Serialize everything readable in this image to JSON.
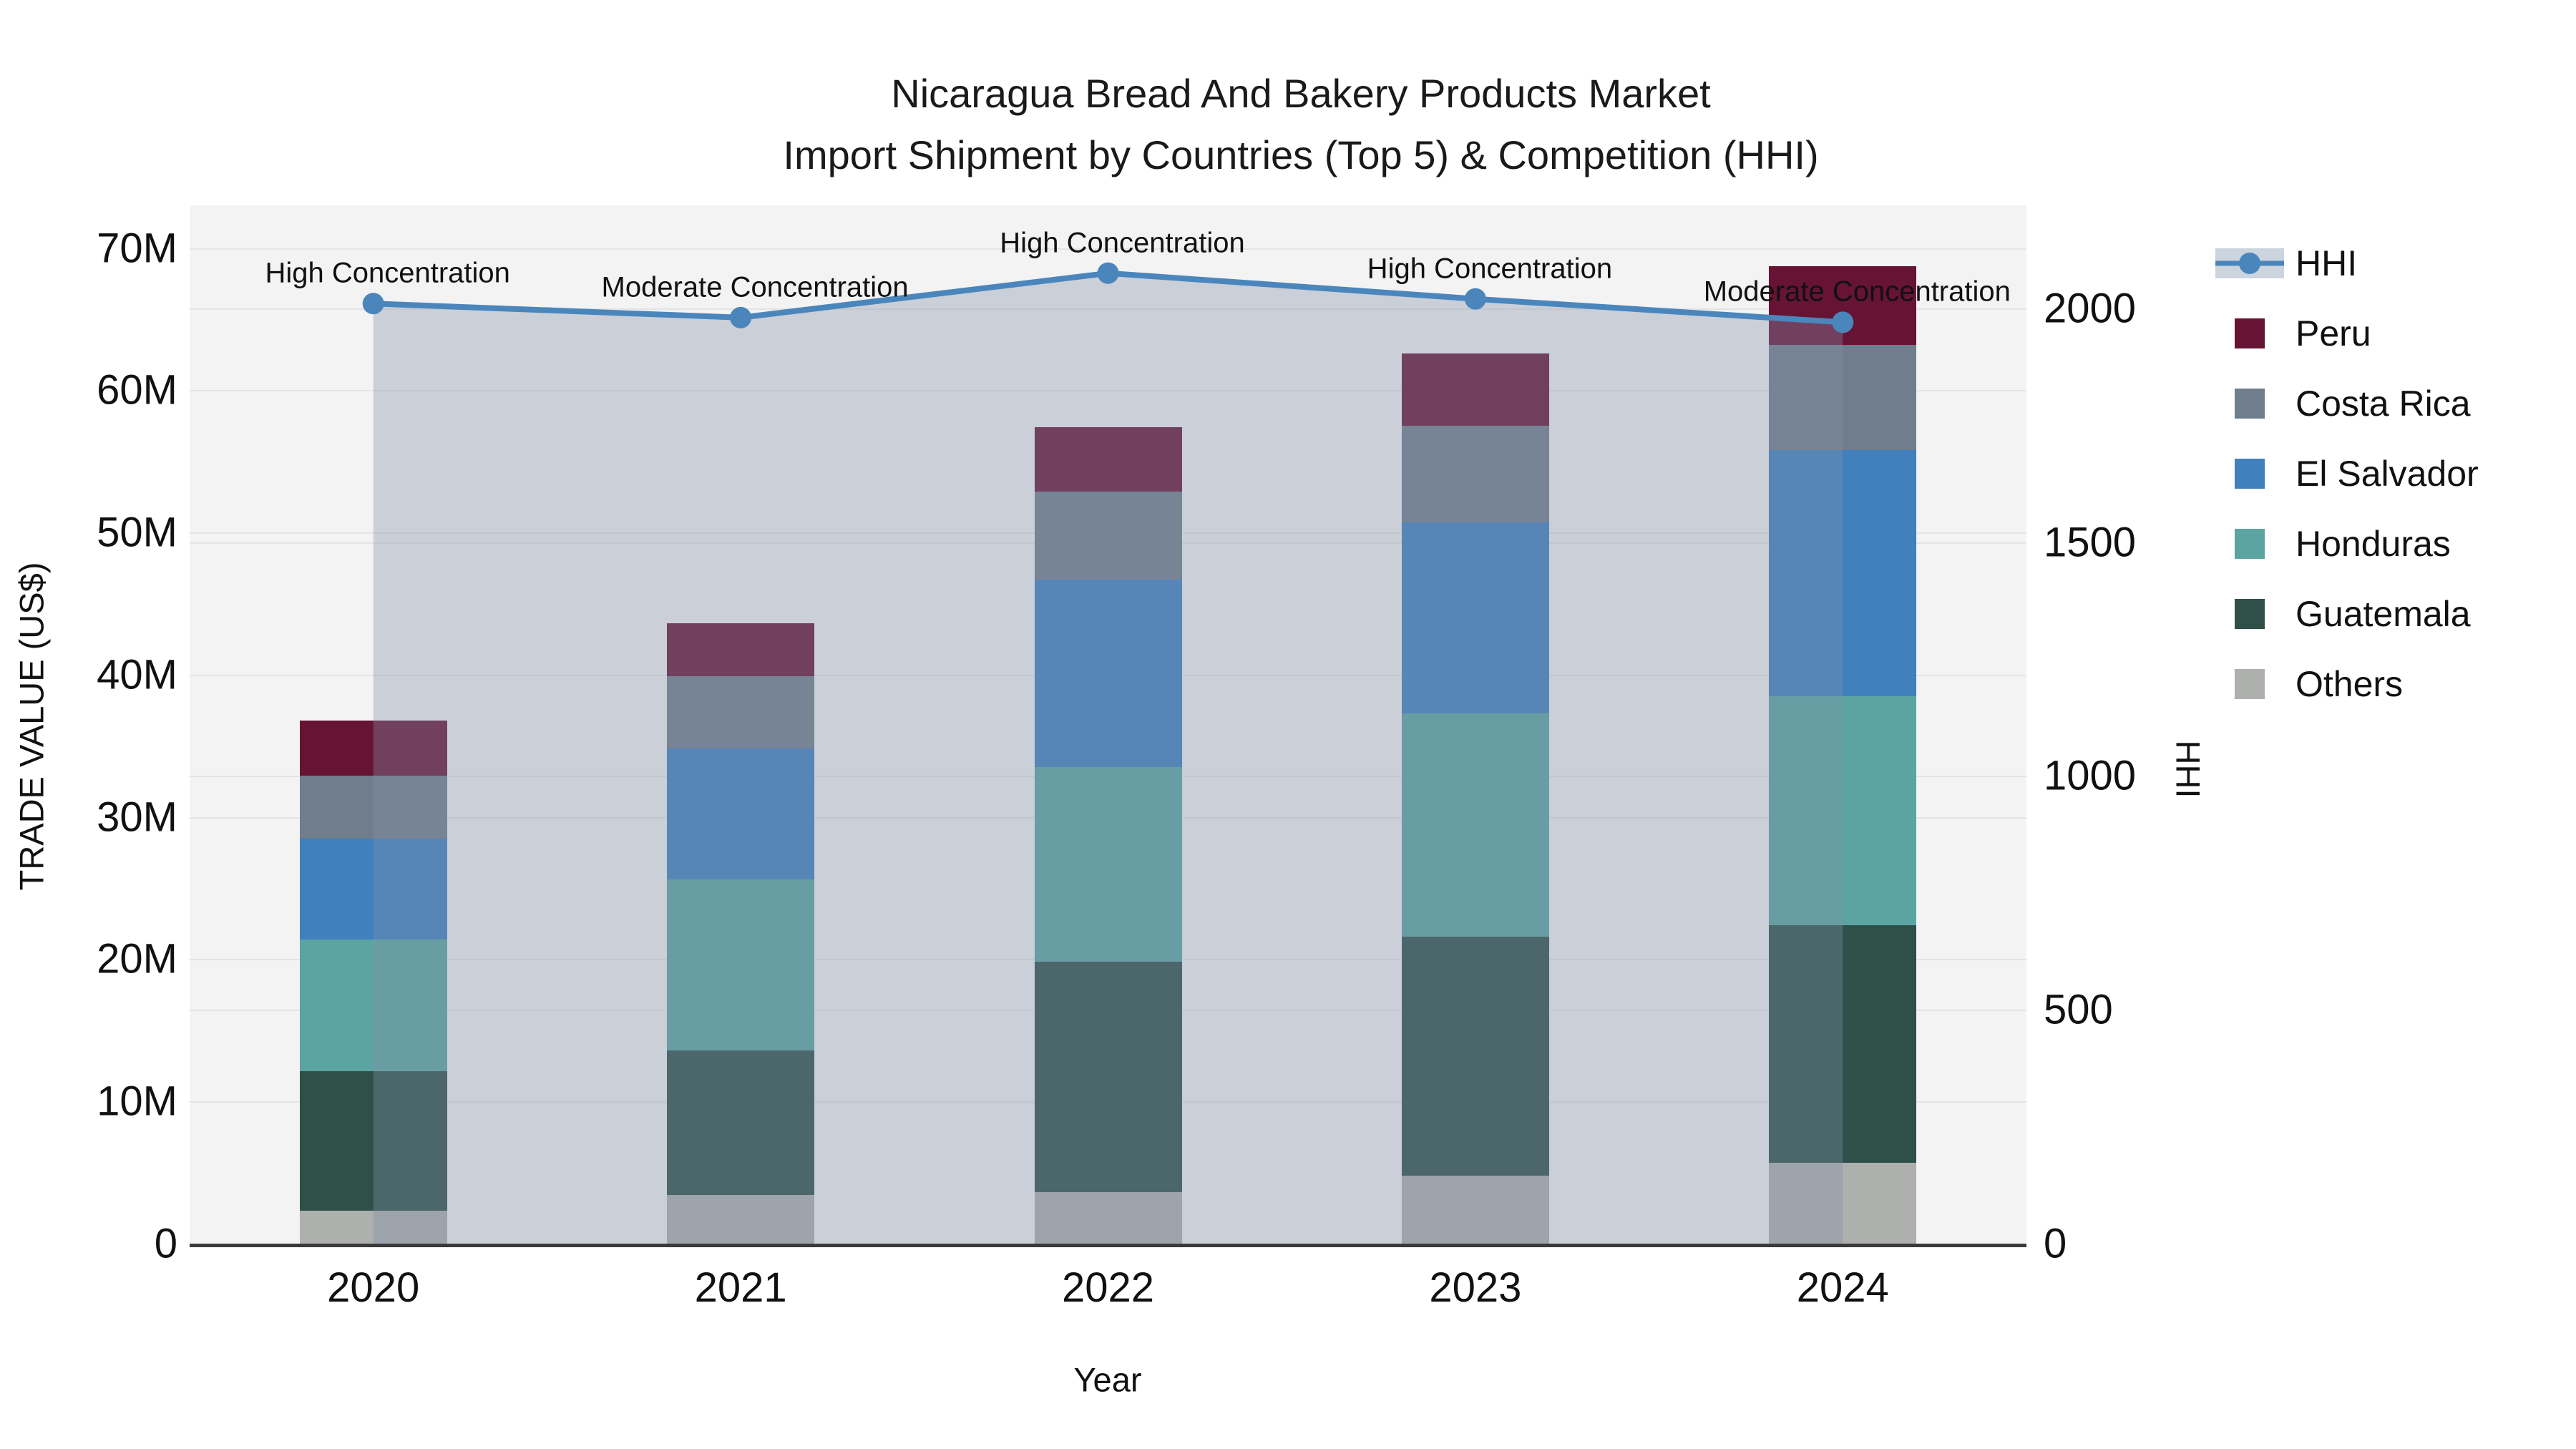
{
  "title": {
    "line1": "Nicaragua Bread And Bakery Products Market",
    "line2": "Import Shipment by Countries (Top 5) & Competition (HHI)"
  },
  "axes": {
    "y_left": {
      "title": "TRADE VALUE (US$)",
      "tick_values": [
        0,
        10,
        20,
        30,
        40,
        50,
        60,
        70
      ],
      "tick_labels": [
        "0",
        "10M",
        "20M",
        "30M",
        "40M",
        "50M",
        "60M",
        "70M"
      ],
      "max": 73
    },
    "y_right": {
      "title": "HHI",
      "tick_values": [
        0,
        500,
        1000,
        1500,
        2000
      ],
      "tick_labels": [
        "0",
        "500",
        "1000",
        "1500",
        "2000"
      ],
      "max": 2220
    },
    "x": {
      "title": "Year",
      "categories": [
        "2020",
        "2021",
        "2022",
        "2023",
        "2024"
      ]
    }
  },
  "legend": {
    "items": [
      {
        "label": "HHI",
        "type": "line",
        "series": "HHI"
      },
      {
        "label": "Peru",
        "type": "swatch",
        "series": "Peru"
      },
      {
        "label": "Costa Rica",
        "type": "swatch",
        "series": "Costa Rica"
      },
      {
        "label": "El Salvador",
        "type": "swatch",
        "series": "El Salvador"
      },
      {
        "label": "Honduras",
        "type": "swatch",
        "series": "Honduras"
      },
      {
        "label": "Guatemala",
        "type": "swatch",
        "series": "Guatemala"
      },
      {
        "label": "Others",
        "type": "swatch",
        "series": "Others"
      }
    ]
  },
  "colors": {
    "hhi_line": "#4a86bc",
    "fill_overlay": "rgba(129,144,170,0.36)",
    "legend_hhi_band": "#ccd4de",
    "plot_bg": "#f3f3f3",
    "grid_line": "#e4e4e4",
    "axis_line": "#3a3a3a",
    "series": {
      "Peru": "#661334",
      "Costa Rica": "#6f7d8c",
      "El Salvador": "#3f80bd",
      "Honduras": "#5ca4a2",
      "Guatemala": "#2e5049",
      "Others": "#aeb0ad"
    }
  },
  "chart_data": {
    "type": "bar+line",
    "title": "Nicaragua Bread And Bakery Products Market — Import Shipment by Countries (Top 5) & Competition (HHI)",
    "xlabel": "Year",
    "ylabel_left": "TRADE VALUE (US$)",
    "ylabel_right": "HHI",
    "categories": [
      "2020",
      "2021",
      "2022",
      "2023",
      "2024"
    ],
    "bar_unit": "million US$",
    "stack_order_bottom_to_top": [
      "Others",
      "Guatemala",
      "Honduras",
      "El Salvador",
      "Costa Rica",
      "Peru"
    ],
    "series": [
      {
        "name": "Others",
        "values": [
          2.3,
          3.4,
          3.6,
          4.8,
          5.7
        ]
      },
      {
        "name": "Guatemala",
        "values": [
          9.8,
          10.2,
          16.2,
          16.8,
          16.7
        ]
      },
      {
        "name": "Honduras",
        "values": [
          9.3,
          12.0,
          13.7,
          15.7,
          16.1
        ]
      },
      {
        "name": "El Salvador",
        "values": [
          7.1,
          9.2,
          13.2,
          13.4,
          17.3
        ]
      },
      {
        "name": "Costa Rica",
        "values": [
          4.4,
          5.1,
          6.2,
          6.8,
          7.4
        ]
      },
      {
        "name": "Peru",
        "values": [
          3.9,
          3.7,
          4.5,
          5.1,
          5.5
        ]
      }
    ],
    "bar_totals": [
      36.8,
      43.6,
      57.4,
      62.6,
      68.7
    ],
    "line_series": {
      "name": "HHI",
      "axis": "right",
      "values": [
        2010,
        1980,
        2075,
        2020,
        1970
      ],
      "area_fill": true
    },
    "annotations": [
      "High Concentration",
      "Moderate Concentration",
      "High Concentration",
      "High Concentration",
      "Moderate Concentration"
    ],
    "ylim_left": [
      0,
      73
    ],
    "ylim_right": [
      0,
      2220
    ],
    "grid": true,
    "legend_position": "right"
  }
}
